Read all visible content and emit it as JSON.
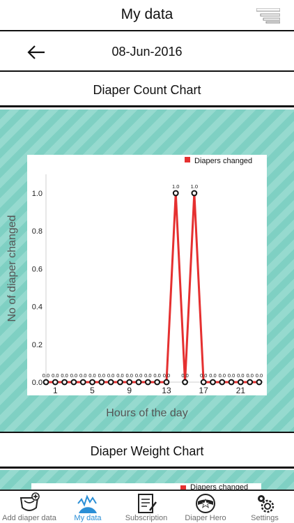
{
  "header": {
    "title": "My data"
  },
  "datebar": {
    "date": "08-Jun-2016"
  },
  "sections": {
    "count_chart_title": "Diaper Count Chart",
    "weight_chart_title": "Diaper Weight Chart"
  },
  "chart_data": {
    "type": "line",
    "title": "",
    "xlabel": "Hours of the day",
    "ylabel": "No of diaper changed",
    "legend": {
      "label": "Diapers changed",
      "placement": "top-right"
    },
    "series": [
      {
        "name": "Diapers changed",
        "color": "#e53030",
        "x": [
          0,
          1,
          2,
          3,
          4,
          5,
          6,
          7,
          8,
          9,
          10,
          11,
          12,
          13,
          14,
          15,
          16,
          17,
          18,
          19,
          20,
          21,
          22,
          23
        ],
        "values": [
          0,
          0,
          0,
          0,
          0,
          0,
          0,
          0,
          0,
          0,
          0,
          0,
          0,
          0,
          1,
          0,
          1,
          0,
          0,
          0,
          0,
          0,
          0,
          0
        ],
        "labels": [
          "0.0",
          "0.0",
          "0.0",
          "0.0",
          "0.0",
          "0.0",
          "0.0",
          "0.0",
          "0.0",
          "0.0",
          "0.0",
          "0.0",
          "0.0",
          "0.0",
          "1.0",
          "0.0",
          "1.0",
          "0.0",
          "0.0",
          "0.0",
          "0.0",
          "0.0",
          "0.0",
          "0.0"
        ]
      }
    ],
    "x_ticks": [
      "1",
      "5",
      "9",
      "13",
      "17",
      "21"
    ],
    "x_tick_values": [
      1,
      5,
      9,
      13,
      17,
      21
    ],
    "y_ticks": [
      "0.0",
      "0.2",
      "0.4",
      "0.6",
      "0.8",
      "1.0"
    ],
    "y_tick_values": [
      0,
      0.2,
      0.4,
      0.6,
      0.8,
      1.0
    ],
    "ylim": [
      0,
      1.0
    ],
    "grid": false
  },
  "weight_chart_legend": "Diapers changed",
  "tabs": [
    {
      "label": "Add diaper data",
      "icon": "diaper-add-icon",
      "active": false
    },
    {
      "label": "My data",
      "icon": "chart-icon",
      "active": true
    },
    {
      "label": "Subscription",
      "icon": "document-pen-icon",
      "active": false
    },
    {
      "label": "Diaper Hero",
      "icon": "hero-mask-icon",
      "active": false
    },
    {
      "label": "Settings",
      "icon": "gears-icon",
      "active": false
    }
  ]
}
